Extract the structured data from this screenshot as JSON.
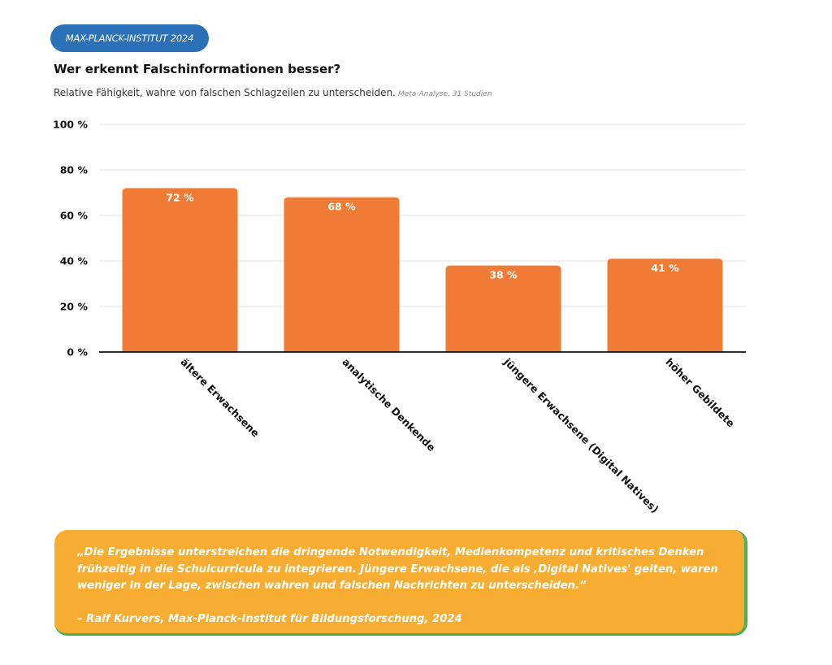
{
  "badge": {
    "label": "MAX-PLANCK-INSTITUT 2024"
  },
  "header": {
    "title": "Wer erkennt Falschinformationen besser?",
    "subtitle": "Relative Fähigkeit, wahre von falschen Schlagzeilen zu unterscheiden.",
    "subtitle_note": "Meta-Analyse, 31 Studien"
  },
  "colors": {
    "bar": "#f07b35",
    "badge": "#2b71b8",
    "quote_bg": "#f7ad32",
    "quote_border": "#4caf50",
    "grid": "#e0e0e0",
    "axis": "#111111"
  },
  "chart_data": {
    "type": "bar",
    "categories": [
      "ältere Erwachsene",
      "analytische Denkende",
      "jüngere Erwachsene (Digital Natives)",
      "höher Gebildete"
    ],
    "values": [
      72,
      68,
      38,
      41
    ],
    "value_labels": [
      "72 %",
      "68 %",
      "38 %",
      "41 %"
    ],
    "ylim": [
      0,
      100
    ],
    "yticks": [
      0,
      20,
      40,
      60,
      80,
      100
    ],
    "ytick_labels": [
      "0 %",
      "20 %",
      "40 %",
      "60 %",
      "80 %",
      "100 %"
    ],
    "grid": true,
    "legend": "none"
  },
  "quote": {
    "text": "„Die Ergebnisse unterstreichen die dringende Notwendigkeit, Medienkompetenz und kritisches Denken frühzeitig in die Schulcurricula zu integrieren. Jüngere Erwachsene, die als ‚Digital Natives' gelten, waren weniger in der Lage, zwischen wahren und falschen Nachrichten zu unterscheiden.“",
    "author": "– Ralf Kurvers, Max-Planck-Institut für Bildungsforschung, 2024"
  }
}
